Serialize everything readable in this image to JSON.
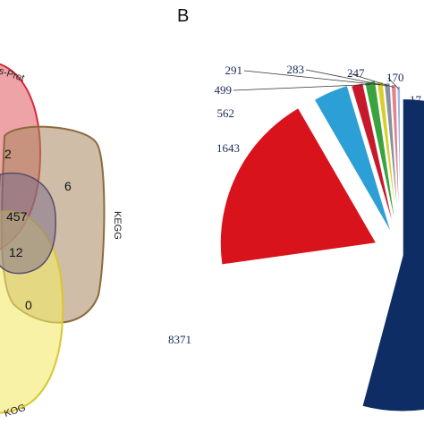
{
  "panels": {
    "b_letter": "B"
  },
  "chart_data": [
    {
      "type": "venn",
      "sets": [
        {
          "name": "Swiss-Prot",
          "display": "s-Prot",
          "color": "#e8848a"
        },
        {
          "name": "KEGG",
          "display": "KEGG",
          "color": "#c9b49b"
        },
        {
          "name": "KOG",
          "display": "KOG",
          "color": "#f1e96a"
        }
      ],
      "region_values": [
        {
          "value": "2"
        },
        {
          "value": "6"
        },
        {
          "value": "457"
        },
        {
          "value": "12"
        },
        {
          "value": "0"
        }
      ]
    },
    {
      "type": "pie",
      "slice_colors": [
        "#0d2d64",
        "#d8131c",
        "#2b9fd6",
        "#c8182c",
        "#3aa340",
        "#d6d12a",
        "#8a8fa0",
        "#e4828a",
        "#9fb8de"
      ],
      "slices": [
        {
          "value": null,
          "label": ""
        },
        {
          "value": 8371,
          "label": "8371"
        },
        {
          "value": 1643,
          "label": "1643"
        },
        {
          "value": 562,
          "label": "562"
        },
        {
          "value": 499,
          "label": "499"
        },
        {
          "value": 291,
          "label": "291"
        },
        {
          "value": 283,
          "label": "283"
        },
        {
          "value": 247,
          "label": "247"
        },
        {
          "value": 170,
          "label": "170"
        }
      ],
      "cut_label": "17"
    }
  ]
}
